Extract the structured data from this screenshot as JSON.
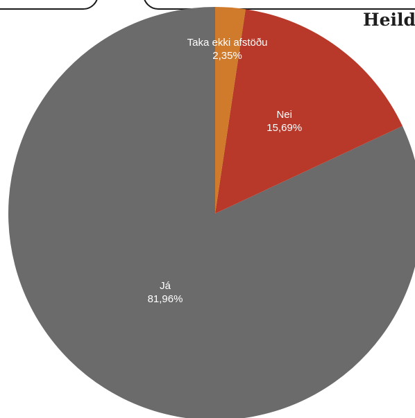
{
  "chart_data": {
    "type": "pie",
    "title": "Heild",
    "start_angle_deg": 0,
    "direction": "counterclockwise",
    "slices": [
      {
        "label": "Já",
        "value": 81.96,
        "value_label": "81,96%",
        "color": "#6b6b6b"
      },
      {
        "label": "Nei",
        "value": 15.69,
        "value_label": "15,69%",
        "color": "#b8392a"
      },
      {
        "label": "Taka ekki afstöðu",
        "value": 2.35,
        "value_label": "2,35%",
        "color": "#d07a2c"
      }
    ]
  }
}
